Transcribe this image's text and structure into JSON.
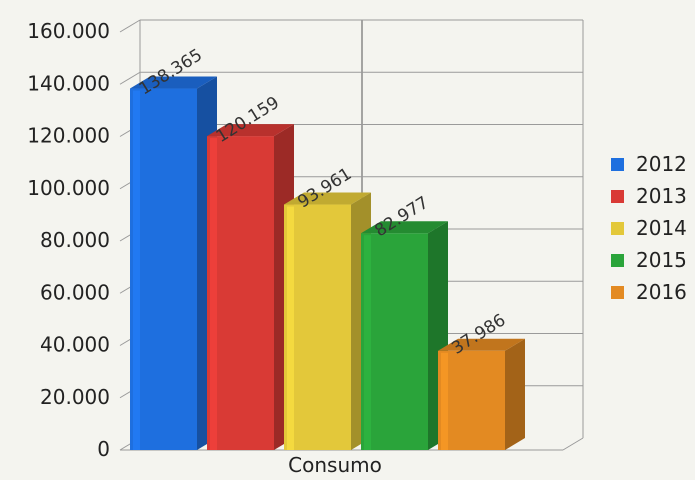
{
  "chart_data": {
    "type": "bar",
    "categories": [
      "Consumo"
    ],
    "series": [
      {
        "name": "2012",
        "values": [
          138365
        ],
        "label": "138.365",
        "color": "#1e6fdf"
      },
      {
        "name": "2013",
        "values": [
          120159
        ],
        "label": "120.159",
        "color": "#d93a35"
      },
      {
        "name": "2014",
        "values": [
          93961
        ],
        "label": "93.961",
        "color": "#e3c83a"
      },
      {
        "name": "2015",
        "values": [
          82977
        ],
        "label": "82.977",
        "color": "#2aa43a"
      },
      {
        "name": "2016",
        "values": [
          37986
        ],
        "label": "37.986",
        "color": "#e38a22"
      }
    ],
    "ylim": [
      0,
      160000
    ],
    "yticks": [
      {
        "value": 0,
        "label": "0"
      },
      {
        "value": 20000,
        "label": "20.000"
      },
      {
        "value": 40000,
        "label": "40.000"
      },
      {
        "value": 60000,
        "label": "60.000"
      },
      {
        "value": 80000,
        "label": "80.000"
      },
      {
        "value": 100000,
        "label": "100.000"
      },
      {
        "value": 120000,
        "label": "120.000"
      },
      {
        "value": 140000,
        "label": "140.000"
      },
      {
        "value": 160000,
        "label": "160.000"
      }
    ],
    "grid": true,
    "legend_position": "right",
    "style": "3d"
  }
}
